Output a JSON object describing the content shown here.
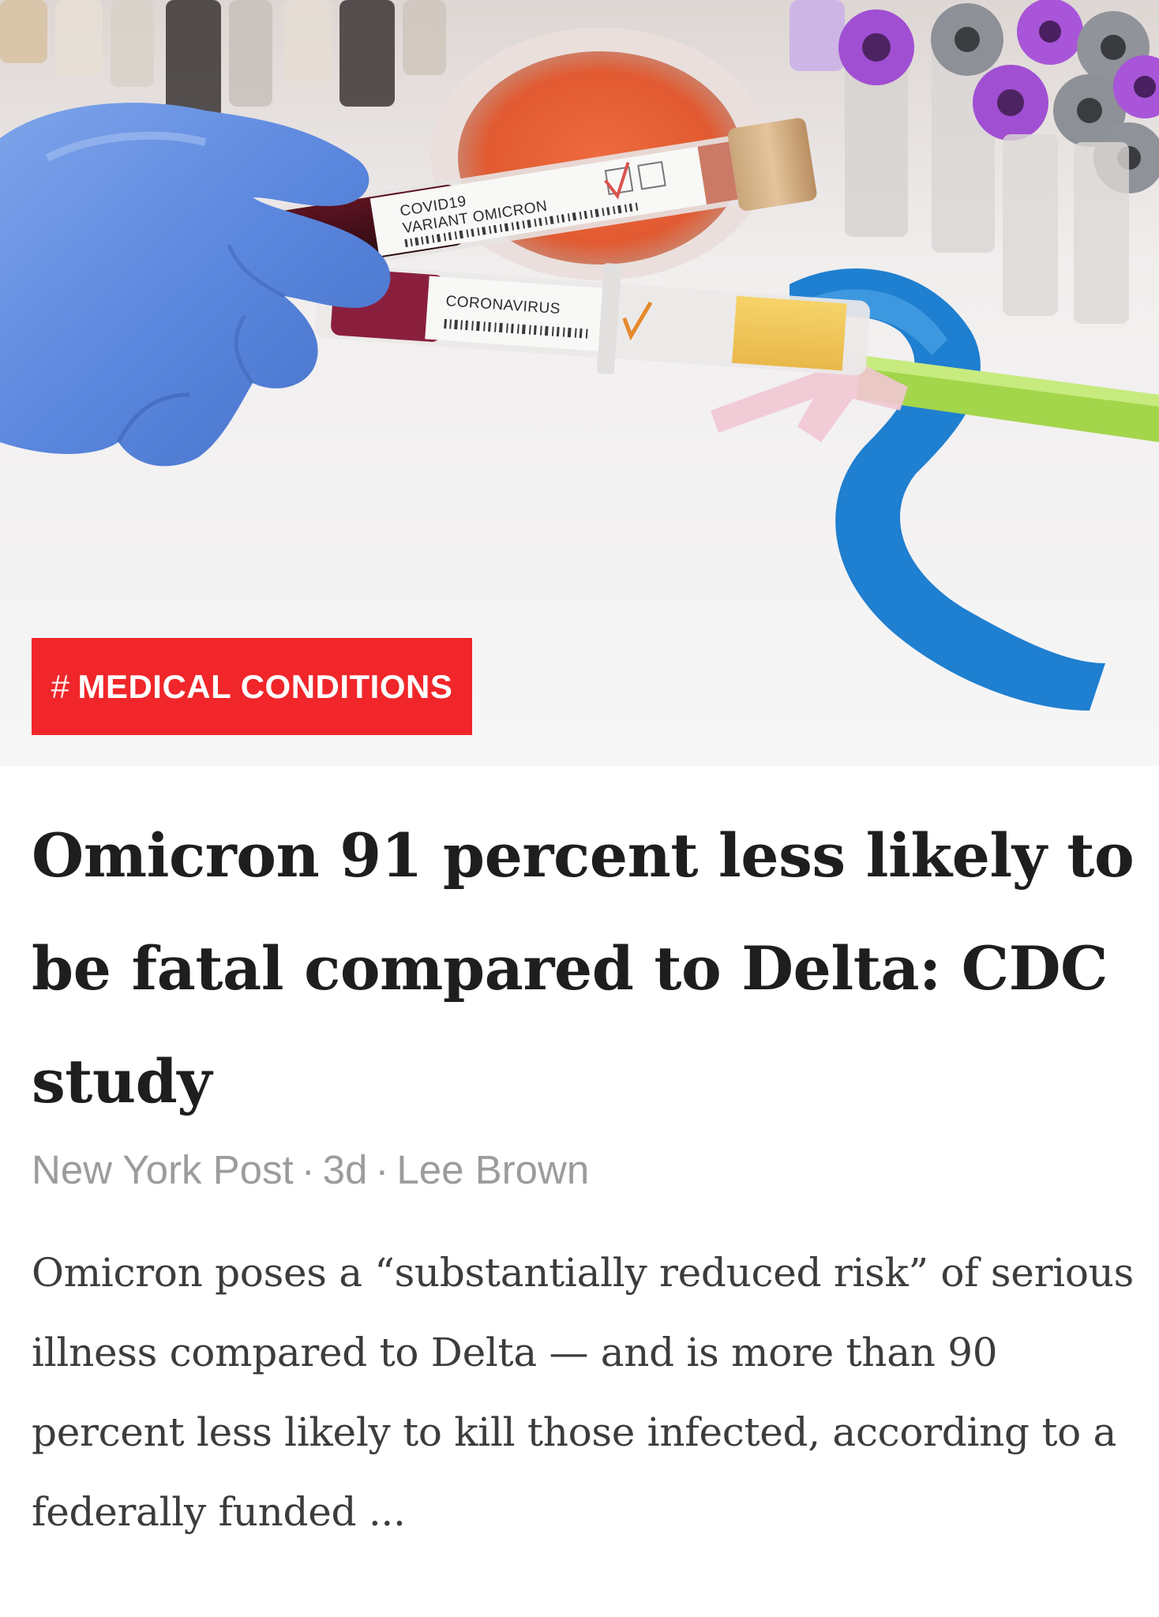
{
  "article": {
    "image": {
      "tube_1_line_1": "COVID19",
      "tube_1_line_2": "VARIANT OMICRON",
      "tube_2_label": "CORONAVIRUS"
    },
    "tag": {
      "hash": "#",
      "label": "MEDICAL CONDITIONS",
      "color": "#f0262a"
    },
    "headline": "Omicron 91 percent less likely to be fatal compared to Delta: CDC study",
    "meta": {
      "source": "New York Post",
      "separator": "·",
      "age": "3d",
      "author": "Lee Brown"
    },
    "summary": "Omicron poses a “substantially reduced risk” of serious illness compared to Delta — and is more than 90 percent less likely to kill those infected, according to a federally funded ..."
  }
}
